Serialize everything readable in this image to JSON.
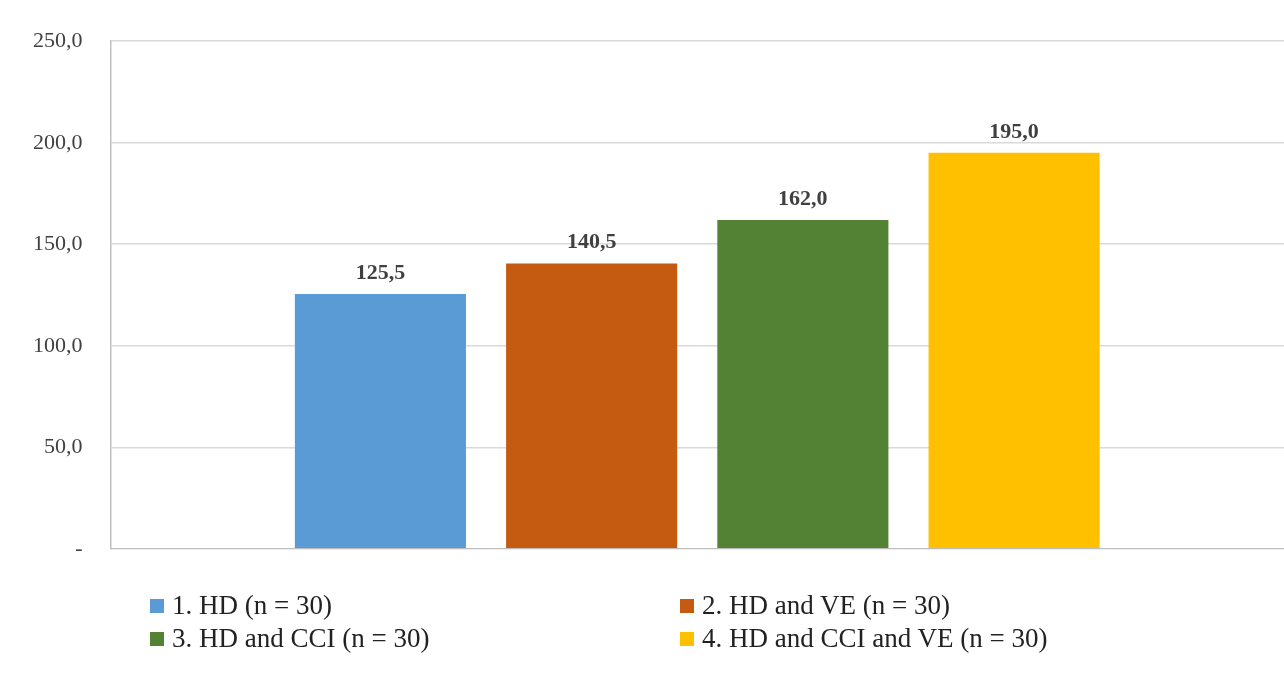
{
  "chart_data": {
    "type": "bar",
    "categories": [
      null
    ],
    "series": [
      {
        "name": "1. HD (n = 30)",
        "color": "#5b9bd5",
        "values": [
          125.5
        ],
        "value_labels": [
          "125,5"
        ]
      },
      {
        "name": "2. HD and VE (n = 30)",
        "color": "#c55a11",
        "values": [
          140.5
        ],
        "value_labels": [
          "140,5"
        ]
      },
      {
        "name": "3. HD and CCI (n = 30)",
        "color": "#548235",
        "values": [
          162.0
        ],
        "value_labels": [
          "162,0"
        ]
      },
      {
        "name": "4. HD and CCI and VE (n = 30)",
        "color": "#ffc000",
        "values": [
          195.0
        ],
        "value_labels": [
          "195,0"
        ]
      }
    ],
    "ylim": [
      0,
      250
    ],
    "yticks": [
      {
        "value": 0,
        "label": "-"
      },
      {
        "value": 50,
        "label": "50,0"
      },
      {
        "value": 100,
        "label": "100,0"
      },
      {
        "value": 150,
        "label": "150,0"
      },
      {
        "value": 200,
        "label": "200,0"
      },
      {
        "value": 250,
        "label": "250,0"
      }
    ],
    "grid": "y",
    "legend": "bottom"
  }
}
